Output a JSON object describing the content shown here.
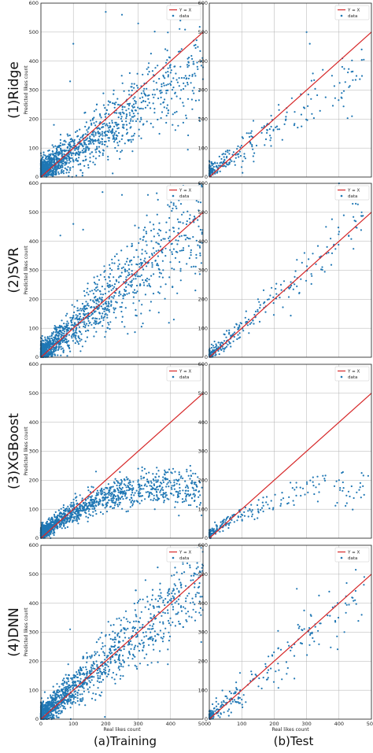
{
  "colors": {
    "identity_line": "#d62728",
    "data_points": "#1f77b4"
  },
  "figure": {
    "column_labels": [
      "(a)Training",
      "(b)Test"
    ],
    "row_labels": [
      "(1)Ridge",
      "(2)SVR",
      "(3)XGBoost",
      "(4)DNN"
    ],
    "xlabel": "Real likes count",
    "ylabel": "Predicted likes count"
  },
  "chart_data": [
    {
      "type": "scatter",
      "model": "(1)Ridge",
      "split": "(a)Training",
      "xlim": [
        0,
        500
      ],
      "ylim": [
        0,
        600
      ],
      "x_ticks": [
        0,
        100,
        200,
        300,
        400,
        500
      ],
      "y_ticks": [
        0,
        100,
        200,
        300,
        400,
        500,
        600
      ],
      "grid": true,
      "legend_position": "top-right",
      "series": [
        {
          "name": "Y = X",
          "kind": "line",
          "x": [
            0,
            500
          ],
          "y": [
            0,
            500
          ]
        },
        {
          "name": "data",
          "kind": "points",
          "n": 1400,
          "x_max": 500,
          "y_at_x0": 20,
          "slope": 0.72,
          "curve": 0,
          "spread": 22,
          "spread_growth": 0.13,
          "y_cap": 600,
          "x": [
            100,
            200,
            250,
            300,
            350,
            400,
            430,
            470,
            180,
            90,
            40,
            495
          ],
          "y": [
            460,
            570,
            560,
            530,
            350,
            360,
            540,
            390,
            140,
            330,
            180,
            400
          ]
        }
      ]
    },
    {
      "type": "scatter",
      "model": "(1)Ridge",
      "split": "(b)Test",
      "xlim": [
        0,
        500
      ],
      "ylim": [
        0,
        600
      ],
      "x_ticks": [
        0,
        100,
        200,
        300,
        400,
        500
      ],
      "y_ticks": [
        0,
        100,
        200,
        300,
        400,
        500,
        600
      ],
      "grid": true,
      "legend_position": "top-right",
      "series": [
        {
          "name": "Y = X",
          "kind": "line",
          "x": [
            0,
            500
          ],
          "y": [
            0,
            500
          ]
        },
        {
          "name": "data",
          "kind": "points",
          "n": 260,
          "x_max": 480,
          "y_at_x0": 18,
          "slope": 0.74,
          "curve": 0,
          "spread": 16,
          "spread_growth": 0.1,
          "y_cap": 600,
          "x": [
            300,
            310,
            350,
            410,
            440,
            470
          ],
          "y": [
            500,
            460,
            370,
            380,
            210,
            440
          ]
        }
      ]
    },
    {
      "type": "scatter",
      "model": "(2)SVR",
      "split": "(a)Training",
      "xlim": [
        0,
        500
      ],
      "ylim": [
        0,
        600
      ],
      "x_ticks": [
        0,
        100,
        200,
        300,
        400,
        500
      ],
      "y_ticks": [
        0,
        100,
        200,
        300,
        400,
        500,
        600
      ],
      "grid": true,
      "legend_position": "top-right",
      "series": [
        {
          "name": "Y = X",
          "kind": "line",
          "x": [
            0,
            500
          ],
          "y": [
            0,
            500
          ]
        },
        {
          "name": "data",
          "kind": "points",
          "n": 1400,
          "x_max": 500,
          "y_at_x0": 8,
          "slope": 0.97,
          "curve": 0,
          "spread": 18,
          "spread_growth": 0.18,
          "y_cap": 600,
          "x": [
            60,
            100,
            130,
            190,
            250,
            330,
            440,
            480,
            90,
            410
          ],
          "y": [
            420,
            460,
            440,
            570,
            560,
            560,
            500,
            540,
            20,
            130
          ]
        }
      ]
    },
    {
      "type": "scatter",
      "model": "(2)SVR",
      "split": "(b)Test",
      "xlim": [
        0,
        500
      ],
      "ylim": [
        0,
        600
      ],
      "x_ticks": [
        0,
        100,
        200,
        300,
        400,
        500
      ],
      "y_ticks": [
        0,
        100,
        200,
        300,
        400,
        500,
        600
      ],
      "grid": true,
      "legend_position": "top-right",
      "series": [
        {
          "name": "Y = X",
          "kind": "line",
          "x": [
            0,
            500
          ],
          "y": [
            0,
            500
          ]
        },
        {
          "name": "data",
          "kind": "points",
          "n": 260,
          "x_max": 480,
          "y_at_x0": 5,
          "slope": 0.98,
          "curve": 0,
          "spread": 12,
          "spread_growth": 0.08,
          "y_cap": 600,
          "x": [
            360,
            400,
            430,
            470
          ],
          "y": [
            450,
            600,
            420,
            500
          ]
        }
      ]
    },
    {
      "type": "scatter",
      "model": "(3)XGBoost",
      "split": "(a)Training",
      "xlim": [
        0,
        500
      ],
      "ylim": [
        0,
        600
      ],
      "x_ticks": [
        0,
        100,
        200,
        300,
        400,
        500
      ],
      "y_ticks": [
        0,
        100,
        200,
        300,
        400,
        500,
        600
      ],
      "grid": true,
      "legend_position": "top-right",
      "series": [
        {
          "name": "Y = X",
          "kind": "line",
          "x": [
            0,
            500
          ],
          "y": [
            0,
            500
          ]
        },
        {
          "name": "data",
          "kind": "points",
          "n": 1400,
          "x_max": 500,
          "y_at_x0": 15,
          "slope": 0.85,
          "curve": 0.0011,
          "spread": 12,
          "spread_growth": 0.06,
          "y_cap": 250,
          "x": [
            100,
            170,
            200,
            300,
            450
          ],
          "y": [
            60,
            230,
            150,
            240,
            230
          ]
        }
      ]
    },
    {
      "type": "scatter",
      "model": "(3)XGBoost",
      "split": "(b)Test",
      "xlim": [
        0,
        500
      ],
      "ylim": [
        0,
        600
      ],
      "x_ticks": [
        0,
        100,
        200,
        300,
        400,
        500
      ],
      "y_ticks": [
        0,
        100,
        200,
        300,
        400,
        500,
        600
      ],
      "grid": true,
      "legend_position": "top-right",
      "series": [
        {
          "name": "Y = X",
          "kind": "line",
          "x": [
            0,
            500
          ],
          "y": [
            0,
            500
          ]
        },
        {
          "name": "data",
          "kind": "points",
          "n": 220,
          "x_max": 480,
          "y_at_x0": 12,
          "slope": 0.8,
          "curve": 0.001,
          "spread": 10,
          "spread_growth": 0.05,
          "y_cap": 240,
          "x": [
            320,
            470,
            490
          ],
          "y": [
            210,
            225,
            215
          ]
        }
      ]
    },
    {
      "type": "scatter",
      "model": "(4)DNN",
      "split": "(a)Training",
      "xlim": [
        0,
        500
      ],
      "ylim": [
        0,
        600
      ],
      "x_ticks": [
        0,
        100,
        200,
        300,
        400,
        500
      ],
      "y_ticks": [
        0,
        100,
        200,
        300,
        400,
        500,
        600
      ],
      "grid": true,
      "legend_position": "top-right",
      "series": [
        {
          "name": "Y = X",
          "kind": "line",
          "x": [
            0,
            500
          ],
          "y": [
            0,
            500
          ]
        },
        {
          "name": "data",
          "kind": "points",
          "n": 1400,
          "x_max": 500,
          "y_at_x0": 10,
          "slope": 0.96,
          "curve": 0,
          "spread": 18,
          "spread_growth": 0.14,
          "y_cap": 600,
          "x": [
            90,
            60,
            200,
            480,
            490,
            420
          ],
          "y": [
            310,
            20,
            160,
            520,
            510,
            450
          ]
        }
      ]
    },
    {
      "type": "scatter",
      "model": "(4)DNN",
      "split": "(b)Test",
      "xlim": [
        0,
        500
      ],
      "ylim": [
        0,
        600
      ],
      "x_ticks": [
        0,
        100,
        200,
        300,
        400,
        500
      ],
      "y_ticks": [
        0,
        100,
        200,
        300,
        400,
        500,
        600
      ],
      "grid": true,
      "legend_position": "top-right",
      "series": [
        {
          "name": "Y = X",
          "kind": "line",
          "x": [
            0,
            500
          ],
          "y": [
            0,
            500
          ]
        },
        {
          "name": "data",
          "kind": "points",
          "n": 240,
          "x_max": 480,
          "y_at_x0": 8,
          "slope": 0.92,
          "curve": 0,
          "spread": 14,
          "spread_growth": 0.1,
          "y_cap": 600,
          "x": [
            270,
            370,
            420,
            440,
            470
          ],
          "y": [
            450,
            440,
            400,
            420,
            360
          ]
        }
      ]
    }
  ]
}
